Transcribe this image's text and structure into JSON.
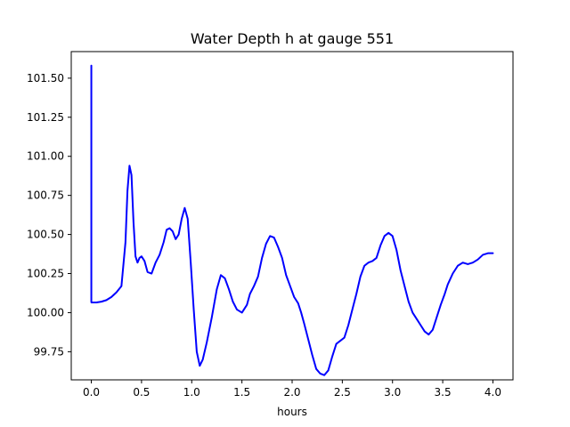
{
  "chart_data": {
    "type": "line",
    "title": "Water Depth h at gauge 551",
    "xlabel": "hours",
    "ylabel": "",
    "xlim": [
      -0.2,
      4.2
    ],
    "ylim": [
      99.57,
      101.67
    ],
    "grid": false,
    "xticks": [
      {
        "value": 0.0,
        "label": "0.0"
      },
      {
        "value": 0.5,
        "label": "0.5"
      },
      {
        "value": 1.0,
        "label": "1.0"
      },
      {
        "value": 1.5,
        "label": "1.5"
      },
      {
        "value": 2.0,
        "label": "2.0"
      },
      {
        "value": 2.5,
        "label": "2.5"
      },
      {
        "value": 3.0,
        "label": "3.0"
      },
      {
        "value": 3.5,
        "label": "3.5"
      },
      {
        "value": 4.0,
        "label": "4.0"
      }
    ],
    "yticks": [
      {
        "value": 99.75,
        "label": "99.75"
      },
      {
        "value": 100.0,
        "label": "100.00"
      },
      {
        "value": 100.25,
        "label": "100.25"
      },
      {
        "value": 100.5,
        "label": "100.50"
      },
      {
        "value": 100.75,
        "label": "100.75"
      },
      {
        "value": 101.0,
        "label": "101.00"
      },
      {
        "value": 101.25,
        "label": "101.25"
      },
      {
        "value": 101.5,
        "label": "101.50"
      }
    ],
    "series": [
      {
        "color": "#0000ff",
        "x": [
          0.0,
          0.0,
          0.001,
          0.05,
          0.1,
          0.15,
          0.2,
          0.25,
          0.3,
          0.34,
          0.36,
          0.38,
          0.4,
          0.42,
          0.44,
          0.46,
          0.48,
          0.5,
          0.53,
          0.56,
          0.6,
          0.64,
          0.68,
          0.72,
          0.75,
          0.78,
          0.81,
          0.84,
          0.87,
          0.9,
          0.93,
          0.96,
          0.99,
          1.02,
          1.05,
          1.08,
          1.11,
          1.15,
          1.2,
          1.25,
          1.29,
          1.33,
          1.37,
          1.41,
          1.45,
          1.5,
          1.55,
          1.58,
          1.62,
          1.66,
          1.7,
          1.74,
          1.78,
          1.82,
          1.86,
          1.9,
          1.94,
          1.98,
          2.02,
          2.06,
          2.09,
          2.12,
          2.16,
          2.2,
          2.24,
          2.28,
          2.32,
          2.36,
          2.4,
          2.44,
          2.48,
          2.52,
          2.56,
          2.6,
          2.64,
          2.68,
          2.72,
          2.76,
          2.8,
          2.84,
          2.88,
          2.92,
          2.96,
          3.0,
          3.04,
          3.08,
          3.12,
          3.16,
          3.2,
          3.24,
          3.28,
          3.32,
          3.36,
          3.4,
          3.44,
          3.48,
          3.52,
          3.55,
          3.6,
          3.65,
          3.7,
          3.75,
          3.8,
          3.85,
          3.9,
          3.95,
          4.0
        ],
        "y": [
          101.58,
          100.07,
          100.065,
          100.065,
          100.07,
          100.08,
          100.1,
          100.13,
          100.17,
          100.45,
          100.78,
          100.94,
          100.88,
          100.58,
          100.36,
          100.32,
          100.35,
          100.36,
          100.33,
          100.26,
          100.25,
          100.32,
          100.37,
          100.45,
          100.53,
          100.54,
          100.52,
          100.47,
          100.5,
          100.6,
          100.67,
          100.6,
          100.32,
          100.02,
          99.75,
          99.66,
          99.7,
          99.81,
          99.97,
          100.15,
          100.24,
          100.22,
          100.15,
          100.07,
          100.02,
          100.0,
          100.05,
          100.12,
          100.17,
          100.23,
          100.35,
          100.44,
          100.49,
          100.48,
          100.42,
          100.35,
          100.24,
          100.17,
          100.1,
          100.06,
          100.0,
          99.93,
          99.83,
          99.73,
          99.64,
          99.61,
          99.6,
          99.63,
          99.72,
          99.8,
          99.82,
          99.84,
          99.92,
          100.02,
          100.12,
          100.23,
          100.3,
          100.32,
          100.33,
          100.35,
          100.43,
          100.49,
          100.51,
          100.49,
          100.4,
          100.27,
          100.17,
          100.07,
          100.0,
          99.96,
          99.92,
          99.88,
          99.86,
          99.89,
          99.97,
          100.05,
          100.12,
          100.18,
          100.25,
          100.3,
          100.32,
          100.31,
          100.32,
          100.34,
          100.37,
          100.38,
          100.38
        ]
      }
    ]
  }
}
